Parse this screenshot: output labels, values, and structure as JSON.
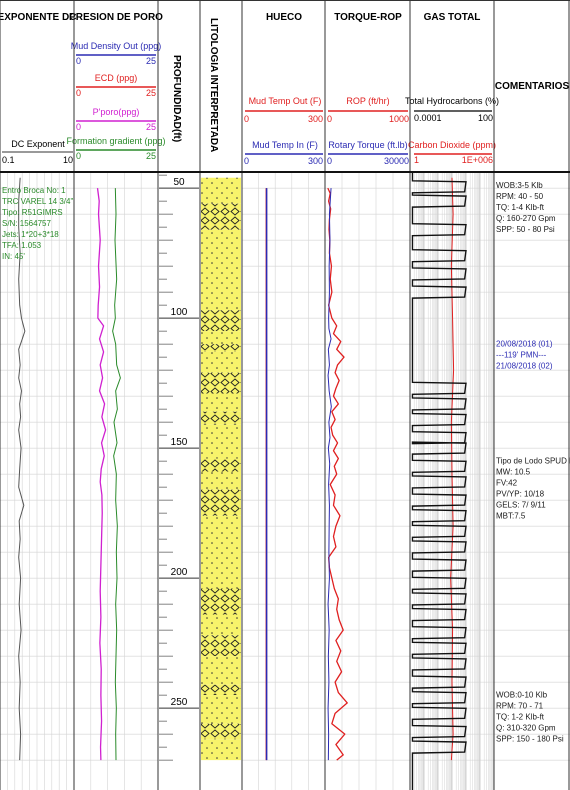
{
  "columns": {
    "dc": "EXPONENTE DC",
    "pp": "PRESION DE PORO",
    "depth": "PROFUNDIDAD(ft)",
    "lith": "LITOLOGIA INTERPRETADA",
    "hueco": "HUECO",
    "torque": "TORQUE-ROP",
    "gas": "GAS TOTAL",
    "comments": "COMENTARIOS"
  },
  "scales": {
    "dc_exponent": {
      "label": "DC Exponent",
      "min": "0.1",
      "max": "10"
    },
    "mud_density_out": {
      "label": "Mud Density Out (ppg)",
      "min": "0",
      "max": "25",
      "color": "#2b2bb3"
    },
    "ecd": {
      "label": "ECD (ppg)",
      "min": "0",
      "max": "25",
      "color": "#e02020"
    },
    "pporo": {
      "label": "P'poro(ppg)",
      "min": "0",
      "max": "25",
      "color": "#d020d0"
    },
    "formation_gradient": {
      "label": "Formation gradient (ppg)",
      "min": "0",
      "max": "25",
      "color": "#2a8a2a"
    },
    "mud_temp_out": {
      "label": "Mud Temp Out (F)",
      "min": "0",
      "max": "300",
      "color": "#e02020"
    },
    "mud_temp_in": {
      "label": "Mud Temp In (F)",
      "min": "0",
      "max": "300",
      "color": "#2b2bb3"
    },
    "rop": {
      "label": "ROP (ft/hr)",
      "min": "0",
      "max": "1000",
      "color": "#e02020"
    },
    "rotary_torque": {
      "label": "Rotary Torque (ft.lb)",
      "min": "0",
      "max": "30000",
      "color": "#2b2bb3"
    },
    "total_hydrocarbons": {
      "label": "Total Hydrocarbons (%)",
      "min": "0.0001",
      "max": "100",
      "color": "#000000"
    },
    "carbon_dioxide": {
      "label": "Carbon Dioxide (ppm)",
      "min": "1",
      "max": "1E+006",
      "color": "#e02020"
    }
  },
  "bit_info": [
    "Entro Broca No: 1",
    "TRC VAREL 14 3/4\"",
    "Tipo: R51GIMRS",
    "S/N: 1564757",
    "Jets: 1*20+3*18",
    "TFA: 1.053",
    "IN: 45'"
  ],
  "comments": [
    {
      "depth": 50,
      "lines": [
        "WOB:3-5 Klb",
        "RPM: 40 - 50",
        "TQ: 1-4 Klb-ft",
        "Q: 160-270 Gpm",
        "SPP: 50 - 80 Psi"
      ],
      "color": "#1a1a1a"
    },
    {
      "depth": 111,
      "lines": [
        "20/08/2018 (01)",
        "---119' PMN---",
        "21/08/2018 (02)"
      ],
      "color": "#2b2bb3"
    },
    {
      "depth": 156,
      "lines": [
        "Tipo de Lodo SPUD MUD",
        "MW: 10.5",
        "FV:42",
        "PV/YP: 10/18",
        "GELS: 7/ 9/11",
        "MBT:7.5"
      ],
      "color": "#1a1a1a"
    },
    {
      "depth": 246,
      "lines": [
        "WOB:0-10 Klb",
        "RPM: 70 - 71",
        "TQ: 1-2 Klb-ft",
        "Q: 310-320 Gpm",
        "SPP: 150 - 180 Psi"
      ],
      "color": "#1a1a1a"
    }
  ],
  "chart_data": {
    "type": "line",
    "depth_unit": "ft",
    "depth_range": [
      46,
      270
    ],
    "depth_ticks": [
      50,
      100,
      150,
      200,
      250
    ],
    "series": [
      {
        "name": "DC Exponent",
        "color": "#555555",
        "depth": [
          46,
          55,
          65,
          75,
          85,
          95,
          100,
          105,
          108,
          112,
          118,
          123,
          128,
          133,
          138,
          143,
          150,
          158,
          165,
          172,
          178,
          185,
          192,
          200,
          210,
          220,
          230,
          240,
          250,
          260,
          270
        ],
        "values": [
          0.33,
          0.3,
          0.3,
          0.33,
          0.3,
          0.32,
          0.36,
          0.45,
          0.38,
          0.3,
          0.33,
          0.3,
          0.36,
          0.32,
          0.34,
          0.3,
          0.35,
          0.32,
          0.3,
          0.42,
          0.31,
          0.33,
          0.3,
          0.34,
          0.31,
          0.35,
          0.3,
          0.33,
          0.31,
          0.34,
          0.32
        ]
      },
      {
        "name": "P'poro(ppg)",
        "color": "#d020d0",
        "depth": [
          50,
          55,
          60,
          70,
          80,
          88,
          95,
          100,
          103,
          108,
          113,
          118,
          123,
          128,
          133,
          138,
          143,
          148,
          153,
          158,
          163,
          168,
          175,
          185,
          195,
          205,
          215,
          225,
          235,
          245,
          255,
          265,
          270
        ],
        "values": [
          7,
          7.5,
          7.3,
          7.8,
          7.3,
          7.6,
          7.2,
          7.1,
          8.8,
          7.6,
          8.8,
          7.8,
          8.5,
          7.6,
          9.1,
          8.3,
          9.4,
          8.2,
          9,
          8.1,
          7.8,
          8.3,
          8.4,
          8.2,
          8,
          7.8,
          8,
          7.7,
          8.1,
          8,
          8.2,
          7.9,
          8
        ]
      },
      {
        "name": "Formation gradient (ppg)",
        "color": "#2a8a2a",
        "depth": [
          50,
          60,
          70,
          85,
          95,
          100,
          105,
          110,
          118,
          123,
          128,
          135,
          140,
          148,
          153,
          160,
          170,
          180,
          190,
          200,
          210,
          220,
          230,
          240,
          250,
          260,
          270
        ],
        "values": [
          12.3,
          12.5,
          12.2,
          12.7,
          12.1,
          12.3,
          11.5,
          12.4,
          12.7,
          13.8,
          12.4,
          12.9,
          11.9,
          12.8,
          11.8,
          12.6,
          12.4,
          12.9,
          12.6,
          12.8,
          12.4,
          12.7,
          12.5,
          12.3,
          12.6,
          12.4,
          12.5
        ]
      },
      {
        "name": "ROP (ft/hr)",
        "color": "#e02020",
        "depth": [
          50,
          52,
          55,
          58,
          62,
          66,
          70,
          75,
          80,
          85,
          90,
          95,
          100,
          103,
          106,
          109,
          112,
          115,
          118,
          121,
          124,
          127,
          130,
          133,
          136,
          139,
          142,
          145,
          148,
          151,
          154,
          157,
          160,
          164,
          168,
          172,
          176,
          180,
          184,
          188,
          192,
          196,
          200,
          204,
          208,
          212,
          216,
          220,
          224,
          228,
          232,
          236,
          240,
          244,
          248,
          252,
          256,
          260,
          264,
          268,
          270
        ],
        "values": [
          10,
          40,
          20,
          45,
          30,
          25,
          35,
          30,
          55,
          40,
          60,
          20,
          60,
          120,
          80,
          170,
          120,
          210,
          130,
          100,
          150,
          110,
          80,
          140,
          60,
          100,
          50,
          70,
          130,
          80,
          140,
          90,
          120,
          40,
          100,
          80,
          160,
          110,
          80,
          110,
          20,
          30,
          60,
          90,
          140,
          120,
          150,
          200,
          110,
          170,
          120,
          180,
          100,
          140,
          250,
          100,
          60,
          220,
          110,
          200,
          120
        ]
      },
      {
        "name": "Rotary Torque (ft.lb)",
        "color": "#2b2bb3",
        "depth": [
          50,
          55,
          60,
          70,
          80,
          90,
          100,
          104,
          108,
          112,
          118,
          122,
          128,
          134,
          140,
          146,
          150,
          156,
          164,
          172,
          180,
          190,
          200,
          210,
          220,
          230,
          240,
          250,
          260,
          270
        ],
        "values": [
          1500,
          1200,
          900,
          1100,
          800,
          900,
          600,
          700,
          1500,
          500,
          900,
          400,
          800,
          1600,
          700,
          1100,
          500,
          1000,
          600,
          900,
          800,
          700,
          900,
          400,
          800,
          500,
          700,
          400,
          600,
          500
        ]
      },
      {
        "name": "Carbon Dioxide (ppm)",
        "color": "#e02020",
        "depth": [
          46,
          60,
          80,
          100,
          120,
          140,
          160,
          180,
          200,
          220,
          240,
          260,
          270
        ],
        "values": [
          1000,
          1200,
          900,
          1100,
          1300,
          900,
          1000,
          1200,
          800,
          1100,
          1000,
          1200,
          900
        ]
      },
      {
        "name": "Mud Temp Out (F)",
        "color": "#e02020",
        "depth": [
          50,
          270
        ],
        "values": [
          88,
          88
        ]
      },
      {
        "name": "Mud Temp In (F)",
        "color": "#2b2bb3",
        "depth": [
          50,
          270
        ],
        "values": [
          89,
          89
        ]
      }
    ],
    "total_hydrocarbons_pulses": [
      {
        "depth": 49.5,
        "value": 1
      },
      {
        "depth": 55,
        "value": 1
      },
      {
        "depth": 66,
        "value": 1
      },
      {
        "depth": 76,
        "value": 1
      },
      {
        "depth": 83,
        "value": 1
      },
      {
        "depth": 90,
        "value": 1
      },
      {
        "depth": 127,
        "value": 1
      },
      {
        "depth": 133,
        "value": 1
      },
      {
        "depth": 139,
        "value": 1
      },
      {
        "depth": 146,
        "value": 1
      },
      {
        "depth": 150,
        "value": 1
      },
      {
        "depth": 157,
        "value": 1
      },
      {
        "depth": 163,
        "value": 1
      },
      {
        "depth": 170,
        "value": 1
      },
      {
        "depth": 176,
        "value": 1
      },
      {
        "depth": 182,
        "value": 1
      },
      {
        "depth": 188,
        "value": 1
      },
      {
        "depth": 195,
        "value": 1
      },
      {
        "depth": 202,
        "value": 1
      },
      {
        "depth": 208,
        "value": 1
      },
      {
        "depth": 214,
        "value": 1
      },
      {
        "depth": 221,
        "value": 1
      },
      {
        "depth": 227,
        "value": 1
      },
      {
        "depth": 233,
        "value": 1
      },
      {
        "depth": 240,
        "value": 1
      },
      {
        "depth": 246,
        "value": 1
      },
      {
        "depth": 252,
        "value": 1
      },
      {
        "depth": 259,
        "value": 1
      },
      {
        "depth": 265,
        "value": 1
      }
    ],
    "lithology": [
      {
        "top": 46,
        "base": 56,
        "type": "sand"
      },
      {
        "top": 56,
        "base": 66,
        "type": "conglomerate"
      },
      {
        "top": 66,
        "base": 97,
        "type": "sand"
      },
      {
        "top": 97,
        "base": 105,
        "type": "conglomerate"
      },
      {
        "top": 105,
        "base": 110,
        "type": "sand"
      },
      {
        "top": 110,
        "base": 113,
        "type": "conglomerate"
      },
      {
        "top": 113,
        "base": 121,
        "type": "sand"
      },
      {
        "top": 121,
        "base": 129,
        "type": "conglomerate"
      },
      {
        "top": 129,
        "base": 136,
        "type": "sand"
      },
      {
        "top": 136,
        "base": 141,
        "type": "conglomerate"
      },
      {
        "top": 141,
        "base": 154,
        "type": "sand"
      },
      {
        "top": 154,
        "base": 159,
        "type": "conglomerate"
      },
      {
        "top": 159,
        "base": 166,
        "type": "sand"
      },
      {
        "top": 166,
        "base": 176,
        "type": "conglomerate"
      },
      {
        "top": 176,
        "base": 204,
        "type": "sand"
      },
      {
        "top": 204,
        "base": 214,
        "type": "conglomerate"
      },
      {
        "top": 214,
        "base": 222,
        "type": "sand"
      },
      {
        "top": 222,
        "base": 230,
        "type": "conglomerate"
      },
      {
        "top": 230,
        "base": 241,
        "type": "sand"
      },
      {
        "top": 241,
        "base": 245,
        "type": "conglomerate"
      },
      {
        "top": 245,
        "base": 256,
        "type": "sand"
      },
      {
        "top": 256,
        "base": 262,
        "type": "conglomerate"
      },
      {
        "top": 262,
        "base": 270,
        "type": "sand"
      }
    ]
  }
}
